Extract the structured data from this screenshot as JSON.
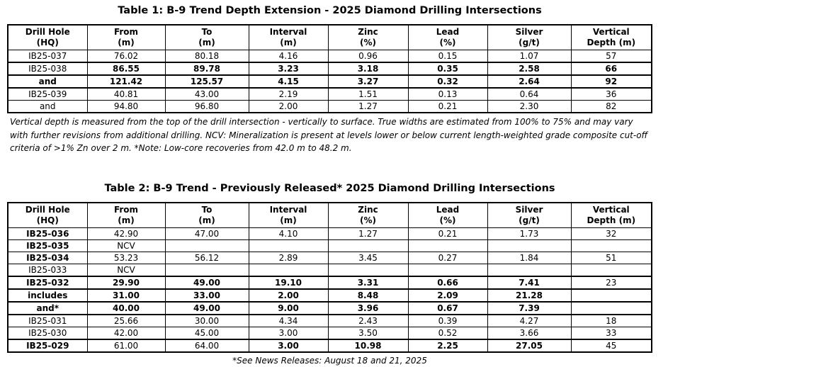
{
  "page": {
    "background_color": "#ffffff",
    "text_color": "#000000",
    "border_color": "#000000"
  },
  "table1": {
    "title": "Table 1: B-9 Trend Depth Extension - 2025 Diamond Drilling Intersections",
    "headers": [
      {
        "l1": "Drill Hole",
        "l2": "(HQ)"
      },
      {
        "l1": "From",
        "l2": "(m)"
      },
      {
        "l1": "To",
        "l2": "(m)"
      },
      {
        "l1": "Interval",
        "l2": "(m)"
      },
      {
        "l1": "Zinc",
        "l2": "(%)"
      },
      {
        "l1": "Lead",
        "l2": "(%)"
      },
      {
        "l1": "Silver",
        "l2": "(g/t)"
      },
      {
        "l1": "Vertical",
        "l2": "Depth (m)"
      }
    ],
    "rows": [
      {
        "hl": false,
        "cells": [
          {
            "t": "IB25-037",
            "b": false
          },
          {
            "t": "76.02",
            "b": false
          },
          {
            "t": "80.18",
            "b": false
          },
          {
            "t": "4.16",
            "b": false
          },
          {
            "t": "0.96",
            "b": false
          },
          {
            "t": "0.15",
            "b": false
          },
          {
            "t": "1.07",
            "b": false
          },
          {
            "t": "57",
            "b": false
          }
        ]
      },
      {
        "hl": true,
        "cells": [
          {
            "t": "IB25-038",
            "b": false
          },
          {
            "t": "86.55",
            "b": true
          },
          {
            "t": "89.78",
            "b": true
          },
          {
            "t": "3.23",
            "b": true
          },
          {
            "t": "3.18",
            "b": true
          },
          {
            "t": "0.35",
            "b": true
          },
          {
            "t": "2.58",
            "b": true
          },
          {
            "t": "66",
            "b": true
          }
        ]
      },
      {
        "hl": true,
        "cells": [
          {
            "t": "and",
            "b": true
          },
          {
            "t": "121.42",
            "b": true
          },
          {
            "t": "125.57",
            "b": true
          },
          {
            "t": "4.15",
            "b": true
          },
          {
            "t": "3.27",
            "b": true
          },
          {
            "t": "0.32",
            "b": true
          },
          {
            "t": "2.64",
            "b": true
          },
          {
            "t": "92",
            "b": true
          }
        ]
      },
      {
        "hl": false,
        "cells": [
          {
            "t": "IB25-039",
            "b": false
          },
          {
            "t": "40.81",
            "b": false
          },
          {
            "t": "43.00",
            "b": false
          },
          {
            "t": "2.19",
            "b": false
          },
          {
            "t": "1.51",
            "b": false
          },
          {
            "t": "0.13",
            "b": false
          },
          {
            "t": "0.64",
            "b": false
          },
          {
            "t": "36",
            "b": false
          }
        ]
      },
      {
        "hl": false,
        "cells": [
          {
            "t": "and",
            "b": false
          },
          {
            "t": "94.80",
            "b": false
          },
          {
            "t": "96.80",
            "b": false
          },
          {
            "t": "2.00",
            "b": false
          },
          {
            "t": "1.27",
            "b": false
          },
          {
            "t": "0.21",
            "b": false
          },
          {
            "t": "2.30",
            "b": false
          },
          {
            "t": "82",
            "b": false
          }
        ]
      }
    ],
    "footnote": "Vertical depth is measured from the top of the drill intersection - vertically to surface. True widths are estimated from 100% to 75% and may vary with further revisions from additional drilling. NCV: Mineralization is present at levels lower or below current length-weighted grade composite cut-off criteria of >1% Zn over 2 m. *Note: Low-core recoveries from 42.0 m to 48.2 m."
  },
  "table2": {
    "title": "Table 2: B-9 Trend - Previously Released* 2025 Diamond Drilling Intersections",
    "headers": [
      {
        "l1": "Drill Hole",
        "l2": "(HQ)"
      },
      {
        "l1": "From",
        "l2": "(m)"
      },
      {
        "l1": "To",
        "l2": "(m)"
      },
      {
        "l1": "Interval",
        "l2": "(m)"
      },
      {
        "l1": "Zinc",
        "l2": "(%)"
      },
      {
        "l1": "Lead",
        "l2": "(%)"
      },
      {
        "l1": "Silver",
        "l2": "(g/t)"
      },
      {
        "l1": "Vertical",
        "l2": "Depth (m)"
      }
    ],
    "rows": [
      {
        "hl": false,
        "cells": [
          {
            "t": "IB25-036",
            "b": true
          },
          {
            "t": "42.90",
            "b": false
          },
          {
            "t": "47.00",
            "b": false
          },
          {
            "t": "4.10",
            "b": false
          },
          {
            "t": "1.27",
            "b": false
          },
          {
            "t": "0.21",
            "b": false
          },
          {
            "t": "1.73",
            "b": false
          },
          {
            "t": "32",
            "b": false
          }
        ]
      },
      {
        "hl": false,
        "cells": [
          {
            "t": "IB25-035",
            "b": true
          },
          {
            "t": "NCV",
            "b": false
          },
          {
            "t": "",
            "b": false
          },
          {
            "t": "",
            "b": false
          },
          {
            "t": "",
            "b": false
          },
          {
            "t": "",
            "b": false
          },
          {
            "t": "",
            "b": false
          },
          {
            "t": "",
            "b": false
          }
        ]
      },
      {
        "hl": false,
        "cells": [
          {
            "t": "IB25-034",
            "b": true
          },
          {
            "t": "53.23",
            "b": false
          },
          {
            "t": "56.12",
            "b": false
          },
          {
            "t": "2.89",
            "b": false
          },
          {
            "t": "3.45",
            "b": false
          },
          {
            "t": "0.27",
            "b": false
          },
          {
            "t": "1.84",
            "b": false
          },
          {
            "t": "51",
            "b": false
          }
        ]
      },
      {
        "hl": false,
        "cells": [
          {
            "t": "IB25-033",
            "b": false
          },
          {
            "t": "NCV",
            "b": false
          },
          {
            "t": "",
            "b": false
          },
          {
            "t": "",
            "b": false
          },
          {
            "t": "",
            "b": false
          },
          {
            "t": "",
            "b": false
          },
          {
            "t": "",
            "b": false
          },
          {
            "t": "",
            "b": false
          }
        ]
      },
      {
        "hl": true,
        "cells": [
          {
            "t": "IB25-032",
            "b": true
          },
          {
            "t": "29.90",
            "b": true
          },
          {
            "t": "49.00",
            "b": true
          },
          {
            "t": "19.10",
            "b": true
          },
          {
            "t": "3.31",
            "b": true
          },
          {
            "t": "0.66",
            "b": true
          },
          {
            "t": "7.41",
            "b": true
          },
          {
            "t": "23",
            "b": false
          }
        ]
      },
      {
        "hl": true,
        "cells": [
          {
            "t": "includes",
            "b": true
          },
          {
            "t": "31.00",
            "b": true
          },
          {
            "t": "33.00",
            "b": true
          },
          {
            "t": "2.00",
            "b": true
          },
          {
            "t": "8.48",
            "b": true
          },
          {
            "t": "2.09",
            "b": true
          },
          {
            "t": "21.28",
            "b": true
          },
          {
            "t": "",
            "b": false
          }
        ]
      },
      {
        "hl": true,
        "cells": [
          {
            "t": "and*",
            "b": true
          },
          {
            "t": "40.00",
            "b": true
          },
          {
            "t": "49.00",
            "b": true
          },
          {
            "t": "9.00",
            "b": true
          },
          {
            "t": "3.96",
            "b": true
          },
          {
            "t": "0.67",
            "b": true
          },
          {
            "t": "7.39",
            "b": true
          },
          {
            "t": "",
            "b": false
          }
        ]
      },
      {
        "hl": false,
        "cells": [
          {
            "t": "IB25-031",
            "b": false
          },
          {
            "t": "25.66",
            "b": false
          },
          {
            "t": "30.00",
            "b": false
          },
          {
            "t": "4.34",
            "b": false
          },
          {
            "t": "2.43",
            "b": false
          },
          {
            "t": "0.39",
            "b": false
          },
          {
            "t": "4.27",
            "b": false
          },
          {
            "t": "18",
            "b": false
          }
        ]
      },
      {
        "hl": false,
        "cells": [
          {
            "t": "IB25-030",
            "b": false
          },
          {
            "t": "42.00",
            "b": false
          },
          {
            "t": "45.00",
            "b": false
          },
          {
            "t": "3.00",
            "b": false
          },
          {
            "t": "3.50",
            "b": false
          },
          {
            "t": "0.52",
            "b": false
          },
          {
            "t": "3.66",
            "b": false
          },
          {
            "t": "33",
            "b": false
          }
        ]
      },
      {
        "hl": true,
        "cells": [
          {
            "t": "IB25-029",
            "b": true
          },
          {
            "t": "61.00",
            "b": false
          },
          {
            "t": "64.00",
            "b": false
          },
          {
            "t": "3.00",
            "b": true
          },
          {
            "t": "10.98",
            "b": true
          },
          {
            "t": "2.25",
            "b": true
          },
          {
            "t": "27.05",
            "b": true
          },
          {
            "t": "45",
            "b": false
          }
        ]
      }
    ],
    "footnote": "*See News Releases: August 18 and 21, 2025"
  }
}
